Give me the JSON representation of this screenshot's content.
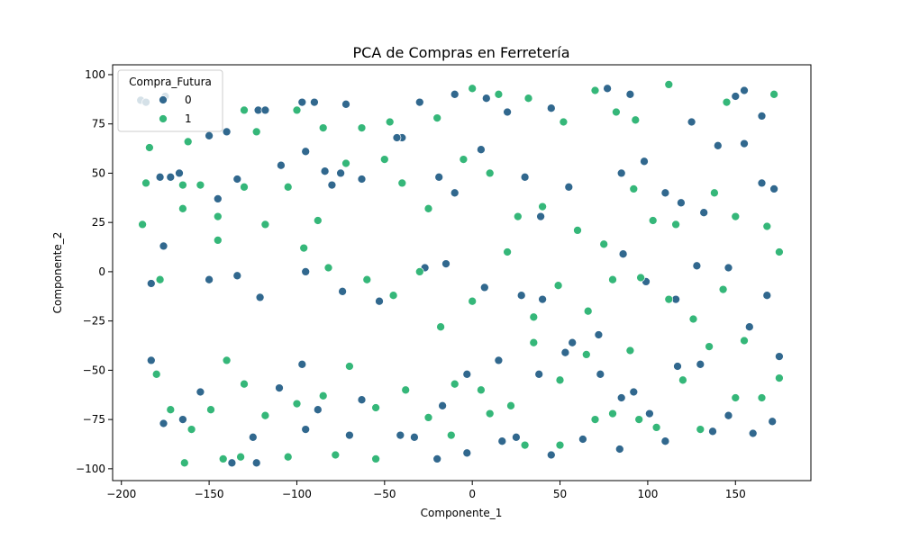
{
  "chart_data": {
    "type": "scatter",
    "title": "PCA de Compras en Ferretería",
    "xlabel": "Componente_1",
    "ylabel": "Componente_2",
    "xlim": [
      -205,
      193
    ],
    "ylim": [
      -106,
      105
    ],
    "xticks": [
      -200,
      -150,
      -100,
      -50,
      0,
      50,
      100,
      150
    ],
    "yticks": [
      -100,
      -75,
      -50,
      -25,
      0,
      25,
      50,
      75,
      100
    ],
    "grid": false,
    "legend": {
      "title": "Compra_Futura",
      "placement": "top-left",
      "entries": [
        "0",
        "1"
      ]
    },
    "series": [
      {
        "name": "0",
        "color": "#31688e",
        "points": [
          [
            -189,
            87
          ],
          [
            -186,
            86
          ],
          [
            -175,
            89
          ],
          [
            -150,
            69
          ],
          [
            -140,
            71
          ],
          [
            -122,
            82
          ],
          [
            -118,
            82
          ],
          [
            -97,
            86
          ],
          [
            -90,
            86
          ],
          [
            -72,
            85
          ],
          [
            -40,
            68
          ],
          [
            -30,
            86
          ],
          [
            -10,
            90
          ],
          [
            8,
            88
          ],
          [
            20,
            81
          ],
          [
            45,
            83
          ],
          [
            77,
            93
          ],
          [
            90,
            90
          ],
          [
            125,
            76
          ],
          [
            150,
            89
          ],
          [
            155,
            92
          ],
          [
            165,
            79
          ],
          [
            -178,
            48
          ],
          [
            -172,
            48
          ],
          [
            -167,
            50
          ],
          [
            -145,
            37
          ],
          [
            -134,
            47
          ],
          [
            -109,
            54
          ],
          [
            -95,
            61
          ],
          [
            -84,
            51
          ],
          [
            -80,
            44
          ],
          [
            -75,
            50
          ],
          [
            -63,
            47
          ],
          [
            -43,
            68
          ],
          [
            -19,
            48
          ],
          [
            -10,
            40
          ],
          [
            5,
            62
          ],
          [
            30,
            48
          ],
          [
            39,
            28
          ],
          [
            55,
            43
          ],
          [
            85,
            50
          ],
          [
            98,
            56
          ],
          [
            110,
            40
          ],
          [
            119,
            35
          ],
          [
            132,
            30
          ],
          [
            140,
            64
          ],
          [
            155,
            65
          ],
          [
            165,
            45
          ],
          [
            172,
            42
          ],
          [
            -183,
            -6
          ],
          [
            -176,
            13
          ],
          [
            -150,
            -4
          ],
          [
            -134,
            -2
          ],
          [
            -121,
            -13
          ],
          [
            -95,
            0
          ],
          [
            -74,
            -10
          ],
          [
            -53,
            -15
          ],
          [
            -27,
            2
          ],
          [
            -15,
            4
          ],
          [
            7,
            -8
          ],
          [
            28,
            -12
          ],
          [
            40,
            -14
          ],
          [
            57,
            -36
          ],
          [
            72,
            -32
          ],
          [
            86,
            9
          ],
          [
            99,
            -5
          ],
          [
            116,
            -14
          ],
          [
            128,
            3
          ],
          [
            146,
            2
          ],
          [
            158,
            -28
          ],
          [
            168,
            -12
          ],
          [
            -183,
            -45
          ],
          [
            -176,
            -77
          ],
          [
            -165,
            -75
          ],
          [
            -155,
            -61
          ],
          [
            -137,
            -97
          ],
          [
            -123,
            -97
          ],
          [
            -110,
            -59
          ],
          [
            -97,
            -47
          ],
          [
            -88,
            -70
          ],
          [
            -63,
            -65
          ],
          [
            -41,
            -83
          ],
          [
            -17,
            -68
          ],
          [
            -3,
            -52
          ],
          [
            15,
            -45
          ],
          [
            25,
            -84
          ],
          [
            38,
            -52
          ],
          [
            53,
            -41
          ],
          [
            73,
            -52
          ],
          [
            85,
            -64
          ],
          [
            92,
            -61
          ],
          [
            101,
            -72
          ],
          [
            117,
            -48
          ],
          [
            130,
            -47
          ],
          [
            146,
            -73
          ],
          [
            160,
            -82
          ],
          [
            171,
            -76
          ],
          [
            175,
            -43
          ],
          [
            -125,
            -84
          ],
          [
            -95,
            -80
          ],
          [
            -70,
            -83
          ],
          [
            -33,
            -84
          ],
          [
            -20,
            -95
          ],
          [
            -3,
            -92
          ],
          [
            17,
            -86
          ],
          [
            45,
            -93
          ],
          [
            63,
            -85
          ],
          [
            84,
            -90
          ],
          [
            110,
            -86
          ],
          [
            137,
            -81
          ]
        ]
      },
      {
        "name": "1",
        "color": "#35b779",
        "points": [
          [
            -184,
            63
          ],
          [
            -162,
            66
          ],
          [
            -130,
            82
          ],
          [
            -123,
            71
          ],
          [
            -100,
            82
          ],
          [
            -85,
            73
          ],
          [
            -63,
            73
          ],
          [
            -47,
            76
          ],
          [
            -20,
            78
          ],
          [
            0,
            93
          ],
          [
            15,
            90
          ],
          [
            32,
            88
          ],
          [
            52,
            76
          ],
          [
            70,
            92
          ],
          [
            82,
            81
          ],
          [
            93,
            77
          ],
          [
            112,
            95
          ],
          [
            145,
            86
          ],
          [
            172,
            90
          ],
          [
            -186,
            45
          ],
          [
            -165,
            44
          ],
          [
            -155,
            44
          ],
          [
            -145,
            28
          ],
          [
            -130,
            43
          ],
          [
            -105,
            43
          ],
          [
            -88,
            26
          ],
          [
            -72,
            55
          ],
          [
            -50,
            57
          ],
          [
            -40,
            45
          ],
          [
            -25,
            32
          ],
          [
            -5,
            57
          ],
          [
            10,
            50
          ],
          [
            26,
            28
          ],
          [
            40,
            33
          ],
          [
            60,
            21
          ],
          [
            75,
            14
          ],
          [
            92,
            42
          ],
          [
            103,
            26
          ],
          [
            116,
            24
          ],
          [
            138,
            40
          ],
          [
            150,
            28
          ],
          [
            168,
            23
          ],
          [
            -188,
            24
          ],
          [
            -178,
            -4
          ],
          [
            -165,
            32
          ],
          [
            -145,
            16
          ],
          [
            -118,
            24
          ],
          [
            -96,
            12
          ],
          [
            -82,
            2
          ],
          [
            -60,
            -4
          ],
          [
            -45,
            -12
          ],
          [
            -30,
            0
          ],
          [
            -18,
            -28
          ],
          [
            0,
            -15
          ],
          [
            20,
            10
          ],
          [
            35,
            -23
          ],
          [
            49,
            -7
          ],
          [
            66,
            -20
          ],
          [
            80,
            -4
          ],
          [
            96,
            -3
          ],
          [
            112,
            -14
          ],
          [
            126,
            -24
          ],
          [
            143,
            -9
          ],
          [
            155,
            -35
          ],
          [
            175,
            10
          ],
          [
            -180,
            -52
          ],
          [
            -172,
            -70
          ],
          [
            -160,
            -80
          ],
          [
            -149,
            -70
          ],
          [
            -140,
            -45
          ],
          [
            -130,
            -57
          ],
          [
            -118,
            -73
          ],
          [
            -100,
            -67
          ],
          [
            -85,
            -63
          ],
          [
            -70,
            -48
          ],
          [
            -55,
            -69
          ],
          [
            -38,
            -60
          ],
          [
            -25,
            -74
          ],
          [
            -10,
            -57
          ],
          [
            5,
            -60
          ],
          [
            22,
            -68
          ],
          [
            35,
            -36
          ],
          [
            50,
            -55
          ],
          [
            65,
            -42
          ],
          [
            80,
            -72
          ],
          [
            90,
            -40
          ],
          [
            105,
            -79
          ],
          [
            120,
            -55
          ],
          [
            135,
            -38
          ],
          [
            150,
            -64
          ],
          [
            165,
            -64
          ],
          [
            175,
            -54
          ],
          [
            -164,
            -97
          ],
          [
            -142,
            -95
          ],
          [
            -132,
            -94
          ],
          [
            -105,
            -94
          ],
          [
            -78,
            -93
          ],
          [
            -55,
            -95
          ],
          [
            -12,
            -83
          ],
          [
            10,
            -72
          ],
          [
            30,
            -88
          ],
          [
            50,
            -88
          ],
          [
            70,
            -75
          ],
          [
            95,
            -75
          ],
          [
            130,
            -80
          ]
        ]
      }
    ]
  }
}
